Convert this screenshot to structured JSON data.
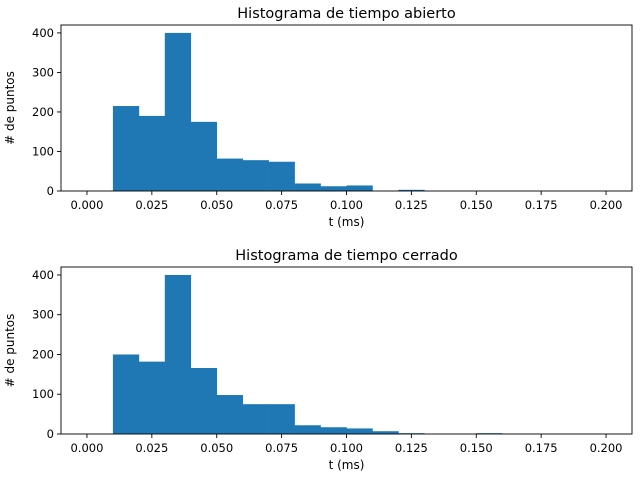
{
  "chart_data": [
    {
      "type": "bar",
      "title": "Histograma de tiempo abierto",
      "xlabel": "t (ms)",
      "ylabel": "# de puntos",
      "xlim": [
        -0.01,
        0.21
      ],
      "ylim": [
        0,
        420
      ],
      "xticks": [
        "0.000",
        "0.025",
        "0.050",
        "0.075",
        "0.100",
        "0.125",
        "0.150",
        "0.175",
        "0.200"
      ],
      "yticks": [
        "0",
        "100",
        "200",
        "300",
        "400"
      ],
      "bin_width": 0.01,
      "bin_edges_start": [
        0.01,
        0.02,
        0.03,
        0.04,
        0.05,
        0.06,
        0.07,
        0.08,
        0.09,
        0.1,
        0.11,
        0.12,
        0.13,
        0.14,
        0.15,
        0.16,
        0.17,
        0.18,
        0.19
      ],
      "values": [
        215,
        190,
        400,
        175,
        82,
        78,
        74,
        19,
        12,
        14,
        0,
        3,
        0,
        0,
        0,
        0,
        0,
        0,
        0
      ],
      "color": "#1f77b4",
      "grid": false
    },
    {
      "type": "bar",
      "title": "Histograma de tiempo cerrado",
      "xlabel": "t (ms)",
      "ylabel": "# de puntos",
      "xlim": [
        -0.01,
        0.21
      ],
      "ylim": [
        0,
        420
      ],
      "xticks": [
        "0.000",
        "0.025",
        "0.050",
        "0.075",
        "0.100",
        "0.125",
        "0.150",
        "0.175",
        "0.200"
      ],
      "yticks": [
        "0",
        "100",
        "200",
        "300",
        "400"
      ],
      "bin_width": 0.01,
      "bin_edges_start": [
        0.01,
        0.02,
        0.03,
        0.04,
        0.05,
        0.06,
        0.07,
        0.08,
        0.09,
        0.1,
        0.11,
        0.12,
        0.13,
        0.14,
        0.15,
        0.16,
        0.17,
        0.18,
        0.19
      ],
      "values": [
        200,
        182,
        400,
        166,
        98,
        75,
        75,
        22,
        17,
        14,
        7,
        2,
        0,
        0,
        2,
        0,
        0,
        0,
        0
      ],
      "color": "#1f77b4",
      "grid": false
    }
  ]
}
